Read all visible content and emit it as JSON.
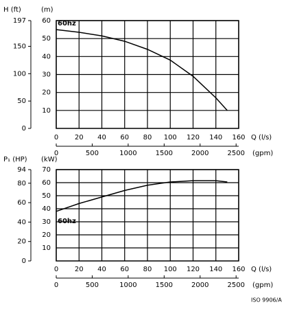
{
  "chart_data": [
    {
      "type": "line",
      "ylabel": "(m)",
      "y2label": "H (ft)",
      "xlabel": "Q (l/s)",
      "x2label": "(gpm)",
      "x": [
        0,
        20,
        40,
        60,
        80,
        100,
        120,
        140,
        150
      ],
      "series": [
        {
          "name": "60hz",
          "color": "#000000",
          "values": [
            55,
            53.5,
            51.5,
            48.5,
            44,
            38,
            29,
            17,
            10
          ]
        }
      ],
      "xlim": [
        0,
        160
      ],
      "xticks": [
        0,
        20,
        40,
        60,
        80,
        100,
        120,
        140,
        160
      ],
      "x2lim": [
        0,
        2536
      ],
      "x2ticks": [
        0,
        500,
        1000,
        1500,
        2000,
        2500
      ],
      "ylim": [
        0,
        60
      ],
      "yticks": [
        10,
        20,
        30,
        40,
        50,
        60
      ],
      "y2lim": [
        0,
        197
      ],
      "y2ticks": [
        0,
        50,
        100,
        150,
        197
      ],
      "grid": true
    },
    {
      "type": "line",
      "ylabel": "(kW)",
      "y2label": "P₁ (HP)",
      "xlabel": "Q (l/s)",
      "x2label": "(gpm)",
      "x": [
        0,
        20,
        40,
        60,
        80,
        100,
        120,
        140,
        150
      ],
      "series": [
        {
          "name": "60hz",
          "color": "#000000",
          "values": [
            38,
            44,
            49,
            54,
            58,
            60.5,
            61.5,
            61.5,
            60.5
          ]
        }
      ],
      "xlim": [
        0,
        160
      ],
      "xticks": [
        0,
        20,
        40,
        60,
        80,
        100,
        120,
        140,
        160
      ],
      "x2lim": [
        0,
        2536
      ],
      "x2ticks": [
        0,
        500,
        1000,
        1500,
        2000,
        2500
      ],
      "ylim": [
        0,
        70
      ],
      "yticks": [
        10,
        20,
        30,
        40,
        50,
        60,
        70
      ],
      "y2lim": [
        0,
        94
      ],
      "y2ticks": [
        0,
        20,
        40,
        60,
        80,
        94
      ],
      "grid": true
    }
  ],
  "footnote": "ISO 9906/A"
}
